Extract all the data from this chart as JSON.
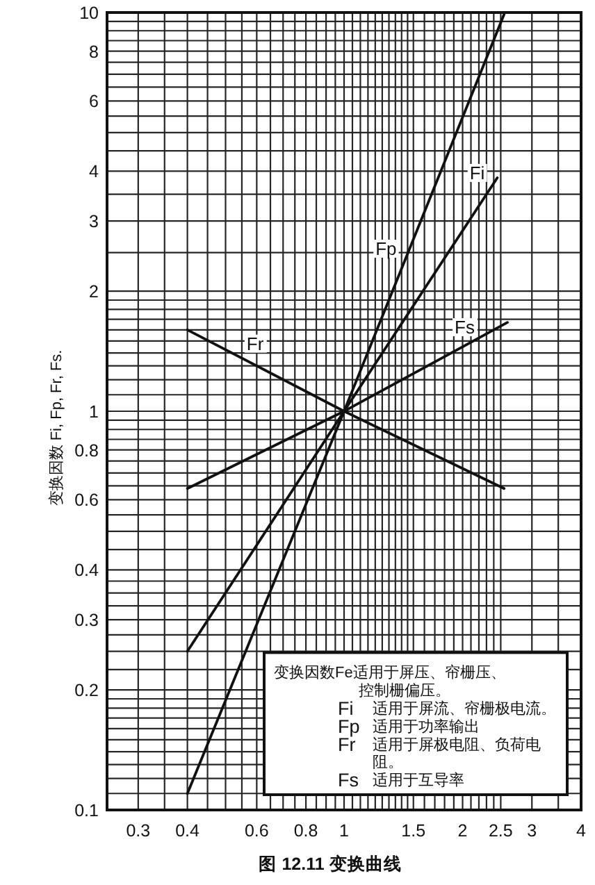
{
  "chart_data": {
    "type": "line",
    "title": "图 12.11 变换曲线",
    "ylabel": "变换因数 Fi, Fp, Fr, Fs.",
    "log": "xy",
    "grid": true,
    "xlim": [
      0.25,
      4
    ],
    "ylim": [
      0.1,
      10
    ],
    "xticks": [
      0.3,
      {
        "value": 0.35,
        "label": null
      },
      0.4,
      {
        "value": 0.45,
        "label": null
      },
      {
        "value": 0.5,
        "label": null
      },
      {
        "value": 0.55,
        "label": null
      },
      0.6,
      {
        "value": 0.65,
        "label": null
      },
      {
        "value": 0.7,
        "label": null
      },
      {
        "value": 0.75,
        "label": null
      },
      0.8,
      {
        "value": 0.85,
        "label": null
      },
      {
        "value": 0.9,
        "label": null
      },
      {
        "value": 0.95,
        "label": null
      },
      1,
      {
        "value": 1.05,
        "label": null
      },
      {
        "value": 1.1,
        "label": null
      },
      {
        "value": 1.15,
        "label": null
      },
      {
        "value": 1.2,
        "label": null
      },
      {
        "value": 1.25,
        "label": null
      },
      {
        "value": 1.3,
        "label": null
      },
      {
        "value": 1.35,
        "label": null
      },
      {
        "value": 1.4,
        "label": null
      },
      {
        "value": 1.45,
        "label": null
      },
      1.5,
      {
        "value": 1.6,
        "label": null
      },
      {
        "value": 1.7,
        "label": null
      },
      {
        "value": 1.8,
        "label": null
      },
      {
        "value": 1.9,
        "label": null
      },
      2,
      {
        "value": 2.1,
        "label": null
      },
      {
        "value": 2.2,
        "label": null
      },
      {
        "value": 2.3,
        "label": null
      },
      {
        "value": 2.4,
        "label": null
      },
      2.5,
      3,
      {
        "value": 3.5,
        "label": null
      },
      4
    ],
    "yticks": [
      0.1,
      {
        "value": 0.11,
        "label": null
      },
      {
        "value": 0.12,
        "label": null
      },
      {
        "value": 0.13,
        "label": null
      },
      {
        "value": 0.14,
        "label": null
      },
      {
        "value": 0.15,
        "label": null
      },
      {
        "value": 0.16,
        "label": null
      },
      {
        "value": 0.17,
        "label": null
      },
      {
        "value": 0.18,
        "label": null
      },
      {
        "value": 0.19,
        "label": null
      },
      0.2,
      {
        "value": 0.225,
        "label": null
      },
      {
        "value": 0.25,
        "label": null
      },
      {
        "value": 0.275,
        "label": null
      },
      0.3,
      {
        "value": 0.325,
        "label": null
      },
      {
        "value": 0.35,
        "label": null
      },
      {
        "value": 0.375,
        "label": null
      },
      0.4,
      {
        "value": 0.45,
        "label": null
      },
      {
        "value": 0.5,
        "label": null
      },
      {
        "value": 0.55,
        "label": null
      },
      0.6,
      {
        "value": 0.65,
        "label": null
      },
      {
        "value": 0.7,
        "label": null
      },
      {
        "value": 0.75,
        "label": null
      },
      0.8,
      {
        "value": 0.85,
        "label": null
      },
      {
        "value": 0.9,
        "label": null
      },
      {
        "value": 0.95,
        "label": null
      },
      1,
      {
        "value": 1.1,
        "label": null
      },
      {
        "value": 1.2,
        "label": null
      },
      {
        "value": 1.3,
        "label": null
      },
      {
        "value": 1.4,
        "label": null
      },
      {
        "value": 1.5,
        "label": null
      },
      {
        "value": 1.6,
        "label": null
      },
      {
        "value": 1.7,
        "label": null
      },
      {
        "value": 1.8,
        "label": null
      },
      {
        "value": 1.9,
        "label": null
      },
      2,
      {
        "value": 2.5,
        "label": null
      },
      3,
      {
        "value": 3.5,
        "label": null
      },
      4,
      {
        "value": 4.5,
        "label": null
      },
      {
        "value": 5,
        "label": null
      },
      {
        "value": 5.5,
        "label": null
      },
      6,
      {
        "value": 6.5,
        "label": null
      },
      {
        "value": 7,
        "label": null
      },
      {
        "value": 7.5,
        "label": null
      },
      8,
      {
        "value": 8.5,
        "label": null
      },
      {
        "value": 9,
        "label": null
      },
      {
        "value": 9.5,
        "label": null
      },
      10
    ],
    "series": [
      {
        "name": "Fi",
        "color": "#111111",
        "x": [
          0.4,
          1,
          2.45
        ],
        "values": [
          0.25,
          1,
          3.85
        ]
      },
      {
        "name": "Fp",
        "color": "#111111",
        "x": [
          0.4,
          1,
          2.55
        ],
        "values": [
          0.11,
          1,
          9.9
        ]
      },
      {
        "name": "Fr",
        "color": "#111111",
        "x": [
          0.4,
          1,
          2.55
        ],
        "values": [
          1.6,
          1,
          0.64
        ]
      },
      {
        "name": "Fs",
        "color": "#111111",
        "x": [
          0.4,
          1,
          2.6
        ],
        "values": [
          0.64,
          1,
          1.67
        ]
      }
    ],
    "annotations": [
      "变换因数Fe适用于屏压、帘栅压、控制栅偏压。",
      "Fi 适用于屏流、帘栅极电流。",
      "Fp 适用于功率输出",
      "Fr 适用于屏极电阻、负荷电阻。",
      "Fs 适用于互导率"
    ]
  }
}
